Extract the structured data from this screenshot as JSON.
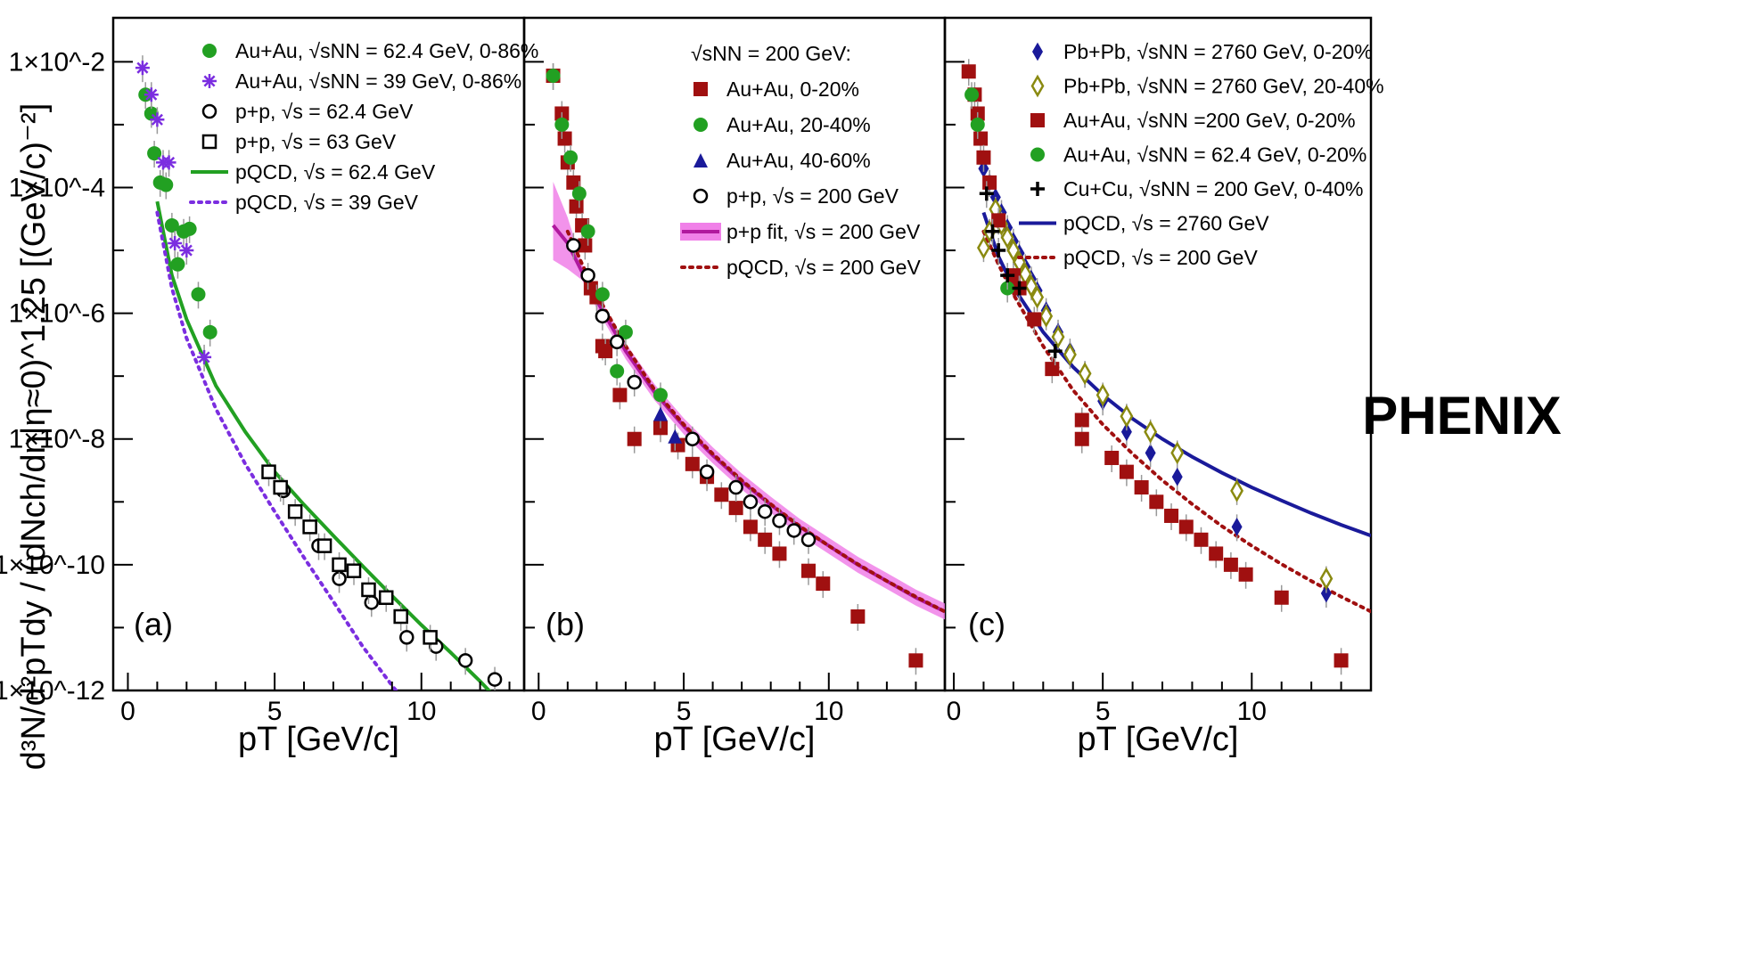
{
  "figure": {
    "ylabel": "d³N/d²pTdy / (dNch/dη|η≈0)^1.25 [(GeV/c)⁻²]",
    "ylim": [
      1e-12,
      0.05
    ],
    "yscale": "log",
    "ytick_values": [
      1e-12,
      1e-10,
      1e-08,
      1e-06,
      0.0001,
      0.01
    ],
    "xlabel": "pT [GeV/c]",
    "brand": "PHENIX",
    "brand_color": "#22cc22"
  },
  "chart_data": [
    {
      "type": "scatter",
      "panel_label": "(a)",
      "xlabel": "pT [GeV/c]",
      "xlim": [
        -0.5,
        13.5
      ],
      "xticks": [
        0,
        5,
        10
      ],
      "legend_position": "top-right",
      "series": [
        {
          "name": "Au+Au, √sNN = 62.4 GeV, 0-86%",
          "marker": "circle-filled",
          "color": "#22a022",
          "x": [
            0.6,
            0.8,
            0.9,
            1.1,
            1.3,
            1.5,
            1.7,
            1.9,
            2.1,
            2.4,
            2.8
          ],
          "y": [
            0.003,
            0.0015,
            0.00035,
            0.00012,
            0.00011,
            2.5e-05,
            6e-06,
            2e-05,
            2.2e-05,
            2e-06,
            5e-07
          ]
        },
        {
          "name": "Au+Au, √sNN = 39 GeV, 0-86%",
          "marker": "asterisk",
          "color": "#7b2ee0",
          "x": [
            0.5,
            0.8,
            1.0,
            1.2,
            1.4,
            1.6,
            2.0,
            2.6
          ],
          "y": [
            0.008,
            0.003,
            0.0012,
            0.00025,
            0.00025,
            1.3e-05,
            1e-05,
            2e-07
          ]
        },
        {
          "name": "p+p, √s = 62.4 GeV",
          "marker": "circle-open",
          "color": "#000000",
          "x": [
            5.3,
            6.5,
            7.2,
            8.3,
            9.5,
            10.5,
            11.5,
            12.5
          ],
          "y": [
            1.5e-09,
            2e-10,
            6e-11,
            2.5e-11,
            7e-12,
            5e-12,
            3e-12,
            1.5e-12
          ]
        },
        {
          "name": "p+p, √s = 63 GeV",
          "marker": "square-open",
          "color": "#000000",
          "x": [
            4.8,
            5.2,
            5.7,
            6.2,
            6.7,
            7.2,
            7.7,
            8.2,
            8.8,
            9.3,
            10.3
          ],
          "y": [
            3e-09,
            1.7e-09,
            7e-10,
            4e-10,
            2e-10,
            1e-10,
            8e-11,
            4e-11,
            3e-11,
            1.5e-11,
            7e-12
          ]
        },
        {
          "name": "pQCD, √s = 62.4 GeV",
          "style": "line-solid",
          "color": "#22a022",
          "x": [
            1.0,
            1.5,
            2.0,
            3.0,
            4.0,
            5.0,
            6.0,
            7.0,
            8.0,
            9.0,
            10.0,
            11.0,
            12.0,
            12.5
          ],
          "y": [
            6e-05,
            4e-06,
            8e-07,
            7e-08,
            1.3e-08,
            3e-09,
            9e-10,
            2.9e-10,
            9.5e-11,
            3.2e-11,
            1.1e-11,
            4e-12,
            1.4e-12,
            8e-13
          ]
        },
        {
          "name": "pQCD, √s = 39 GeV",
          "style": "line-dotted",
          "color": "#7b2ee0",
          "x": [
            1.0,
            1.5,
            2.0,
            3.0,
            4.0,
            5.0,
            6.0,
            7.0,
            8.0,
            9.0,
            9.8
          ],
          "y": [
            4e-05,
            2.5e-06,
            4e-07,
            3e-08,
            4e-09,
            7e-10,
            1.3e-10,
            2.6e-11,
            5e-12,
            1.2e-12,
            4e-13
          ]
        }
      ]
    },
    {
      "type": "scatter",
      "panel_label": "(b)",
      "xlabel": "pT [GeV/c]",
      "xlim": [
        -0.5,
        14
      ],
      "xticks": [
        0,
        5,
        10
      ],
      "legend_title": "√sNN = 200 GeV:",
      "legend_position": "top-right",
      "series": [
        {
          "name": "Au+Au, 0-20%",
          "marker": "square-filled",
          "color": "#a01010",
          "x": [
            0.5,
            0.8,
            0.9,
            1.0,
            1.2,
            1.3,
            1.5,
            1.6,
            1.8,
            2.0,
            2.2,
            2.3,
            2.8,
            3.3,
            4.2,
            4.8,
            5.3,
            5.8,
            6.3,
            6.8,
            7.3,
            7.8,
            8.3,
            9.3,
            9.8,
            11,
            13
          ],
          "y": [
            0.006,
            0.0015,
            0.0006,
            0.00025,
            0.00012,
            5e-05,
            2.5e-05,
            1.2e-05,
            2.5e-06,
            1.8e-06,
            3e-07,
            2.5e-07,
            5e-08,
            1e-08,
            1.5e-08,
            8e-09,
            4e-09,
            2.5e-09,
            1.3e-09,
            8e-10,
            4e-10,
            2.5e-10,
            1.5e-10,
            8e-11,
            5e-11,
            1.5e-11,
            3e-12
          ]
        },
        {
          "name": "Au+Au, 20-40%",
          "marker": "circle-filled",
          "color": "#22a022",
          "x": [
            0.5,
            0.8,
            1.1,
            1.4,
            1.7,
            2.2,
            2.7,
            3.0,
            4.2
          ],
          "y": [
            0.006,
            0.001,
            0.0003,
            8e-05,
            2e-05,
            2e-06,
            1.2e-07,
            5e-07,
            5e-08
          ]
        },
        {
          "name": "Au+Au, 40-60%",
          "marker": "triangle-filled",
          "color": "#1a1a9a",
          "x": [
            4.2,
            4.7
          ],
          "y": [
            2.5e-08,
            1.1e-08
          ]
        },
        {
          "name": "p+p, √s = 200 GeV",
          "marker": "circle-open",
          "color": "#000000",
          "x": [
            1.2,
            1.7,
            2.2,
            2.7,
            3.3,
            5.3,
            5.8,
            6.8,
            7.3,
            7.8,
            8.3,
            8.8,
            9.3
          ],
          "y": [
            1.2e-05,
            4e-06,
            9e-07,
            3.5e-07,
            8e-08,
            1e-08,
            3e-09,
            1.7e-09,
            1e-09,
            7e-10,
            5e-10,
            3.5e-10,
            2.5e-10
          ]
        },
        {
          "name": "p+p fit, √s = 200 GeV",
          "style": "line-band",
          "color": "#b0189e",
          "band_color": "#f080e8",
          "x": [
            0.5,
            1.0,
            1.5,
            2.0,
            3.0,
            4.0,
            5.0,
            6.0,
            7.0,
            8.0,
            9.0,
            10.0,
            11.0,
            12.0,
            13.0,
            14.0
          ],
          "y": [
            2.5e-05,
            1.3e-05,
            4.5e-06,
            1.6e-06,
            2.5e-07,
            5.5e-08,
            1.6e-08,
            5.5e-09,
            2.1e-09,
            9e-10,
            4e-10,
            2e-10,
            1e-10,
            5.5e-11,
            3e-11,
            1.8e-11
          ]
        },
        {
          "name": "pQCD, √s = 200 GeV",
          "style": "line-dotted",
          "color": "#a01010",
          "x": [
            1.0,
            1.5,
            2.0,
            3.0,
            4.0,
            5.0,
            6.0,
            7.0,
            8.0,
            9.0,
            10.0,
            11.0,
            12.0,
            13.0,
            14.0
          ],
          "y": [
            2e-05,
            6e-06,
            2e-06,
            3e-07,
            6e-08,
            1.7e-08,
            5.8e-09,
            2.2e-09,
            9.2e-10,
            4.1e-10,
            2e-10,
            1.02e-10,
            5.5e-11,
            3.1e-11,
            1.8e-11
          ]
        }
      ]
    },
    {
      "type": "scatter",
      "panel_label": "(c)",
      "xlabel": "pT [GeV/c]",
      "xlim": [
        -0.3,
        14
      ],
      "xticks": [
        0,
        5,
        10
      ],
      "legend_position": "top",
      "series": [
        {
          "name": "Pb+Pb, √sNN = 2760 GeV, 0-20%",
          "marker": "diamond-filled",
          "color": "#1a1a9a",
          "x": [
            1.0,
            1.2,
            1.4,
            1.6,
            1.8,
            2.0,
            2.2,
            2.4,
            2.6,
            2.8,
            3.1,
            3.5,
            3.9,
            4.4,
            5.0,
            5.8,
            6.6,
            7.5,
            9.5,
            12.5
          ],
          "y": [
            0.0002,
            0.00012,
            7e-05,
            4e-05,
            2.3e-05,
            1.4e-05,
            9e-06,
            5.5e-06,
            3.5e-06,
            2.3e-06,
            1.1e-06,
            5e-07,
            2.5e-07,
            1.1e-07,
            4e-08,
            1.3e-08,
            6e-09,
            2.5e-09,
            4e-10,
            3.5e-11
          ]
        },
        {
          "name": "Pb+Pb, √sNN = 2760 GeV, 20-40%",
          "marker": "diamond-open",
          "color": "#8a8a10",
          "x": [
            1.0,
            1.2,
            1.4,
            1.6,
            1.8,
            2.0,
            2.2,
            2.4,
            2.6,
            2.8,
            3.1,
            3.5,
            3.9,
            4.4,
            5.0,
            5.8,
            6.6,
            7.5,
            9.5,
            12.5
          ],
          "y": [
            1.1e-05,
            2e-05,
            4.5e-05,
            2.6e-05,
            1.6e-05,
            1e-05,
            6.5e-06,
            4.2e-06,
            2.7e-06,
            1.8e-06,
            9e-07,
            4.2e-07,
            2.2e-07,
            1.1e-07,
            5e-08,
            2.3e-08,
            1.3e-08,
            6e-09,
            1.5e-09,
            6e-11
          ]
        },
        {
          "name": "Au+Au, √sNN =200 GeV, 0-20%",
          "marker": "square-filled",
          "color": "#a01010",
          "x": [
            0.5,
            0.7,
            0.8,
            0.9,
            1.0,
            1.2,
            1.5,
            2.0,
            2.2,
            2.7,
            3.3,
            4.3,
            4.3,
            5.3,
            5.8,
            6.3,
            6.8,
            7.3,
            7.8,
            8.3,
            8.8,
            9.3,
            9.8,
            11,
            13
          ],
          "y": [
            0.007,
            0.003,
            0.0015,
            0.0006,
            0.0003,
            0.00012,
            3e-05,
            4e-06,
            2.5e-06,
            8e-07,
            1.3e-07,
            2e-08,
            1e-08,
            5e-09,
            3e-09,
            1.7e-09,
            1e-09,
            6e-10,
            4e-10,
            2.5e-10,
            1.5e-10,
            1e-10,
            7e-11,
            3e-11,
            3e-12
          ]
        },
        {
          "name": "Au+Au, √sNN = 62.4 GeV, 0-20%",
          "marker": "circle-filled",
          "color": "#22a022",
          "x": [
            0.6,
            0.8,
            1.8
          ],
          "y": [
            0.003,
            0.001,
            2.5e-06
          ]
        },
        {
          "name": "Cu+Cu, √sNN = 200 GeV, 0-40%",
          "marker": "plus",
          "color": "#000000",
          "x": [
            1.1,
            1.3,
            1.5,
            1.8,
            2.2,
            3.4
          ],
          "y": [
            8e-05,
            2e-05,
            1e-05,
            4e-06,
            2.5e-06,
            2.5e-07
          ]
        },
        {
          "name": "pQCD, √s = 2760 GeV",
          "style": "line-solid",
          "color": "#1a1a9a",
          "x": [
            1.0,
            1.5,
            2.0,
            3.0,
            4.0,
            5.0,
            6.0,
            7.0,
            8.0,
            9.0,
            10.0,
            11.0,
            12.0,
            13.0,
            14.0
          ],
          "y": [
            4e-05,
            8e-06,
            2.6e-06,
            5e-07,
            1.4e-07,
            5e-08,
            2.1e-08,
            1e-08,
            5.2e-09,
            2.9e-09,
            1.7e-09,
            1.05e-09,
            6.6e-10,
            4.3e-10,
            2.9e-10
          ]
        },
        {
          "name": "pQCD, √s = 200 GeV",
          "style": "line-dotted",
          "color": "#a01010",
          "x": [
            1.0,
            1.5,
            2.0,
            3.0,
            4.0,
            5.0,
            6.0,
            7.0,
            8.0,
            9.0,
            10.0,
            11.0,
            12.0,
            13.0,
            14.0
          ],
          "y": [
            2e-05,
            6e-06,
            2e-06,
            3e-07,
            6e-08,
            1.7e-08,
            5.8e-09,
            2.2e-09,
            9.2e-10,
            4.1e-10,
            2e-10,
            1.02e-10,
            5.5e-11,
            3.1e-11,
            1.8e-11
          ]
        }
      ]
    }
  ]
}
